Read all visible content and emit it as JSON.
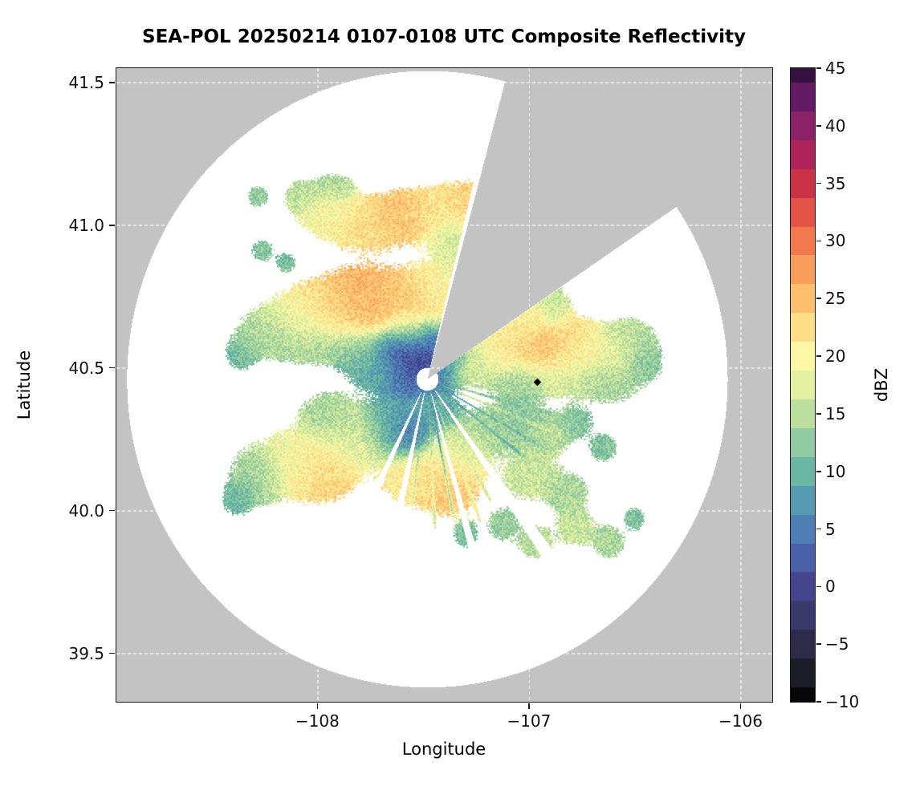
{
  "title": "SEA-POL 20250214 0107-0108 UTC Composite Reflectivity",
  "chart_data": {
    "type": "heatmap",
    "title": "SEA-POL 20250214 0107-0108 UTC Composite Reflectivity",
    "xlabel": "Longitude",
    "ylabel": "Latitude",
    "xlim": [
      -108.95,
      -105.85
    ],
    "ylim": [
      39.33,
      41.55
    ],
    "x_tick_values": [
      -108,
      -107,
      -106
    ],
    "x_tick_labels": [
      "−108",
      "−107",
      "−106"
    ],
    "y_tick_values": [
      41.5,
      41.0,
      40.5,
      40.0,
      39.5
    ],
    "y_tick_labels": [
      "41.5",
      "41.0",
      "40.5",
      "40.0",
      "39.5"
    ],
    "colorbar": {
      "label": "dBZ",
      "min": -10,
      "max": 45,
      "tick_values": [
        45,
        40,
        35,
        30,
        25,
        20,
        15,
        10,
        5,
        0,
        -5,
        -10
      ],
      "tick_labels": [
        "45",
        "40",
        "35",
        "30",
        "25",
        "20",
        "15",
        "10",
        "5",
        "0",
        "−5",
        "−10"
      ],
      "stops": [
        [
          -10,
          "#070709"
        ],
        [
          -7.5,
          "#1d1c29"
        ],
        [
          -5,
          "#2e2b49"
        ],
        [
          -2.5,
          "#3b3a6c"
        ],
        [
          0,
          "#45458e"
        ],
        [
          2.5,
          "#4a60a9"
        ],
        [
          5,
          "#4f7eb5"
        ],
        [
          7.5,
          "#579bb1"
        ],
        [
          10,
          "#68b6a3"
        ],
        [
          12.5,
          "#90caa0"
        ],
        [
          15,
          "#bddf9e"
        ],
        [
          17.5,
          "#e3f1a0"
        ],
        [
          20,
          "#fdf6a5"
        ],
        [
          22.5,
          "#fddd86"
        ],
        [
          25,
          "#fdbe6e"
        ],
        [
          27.5,
          "#f99d5c"
        ],
        [
          30,
          "#f2784e"
        ],
        [
          32.5,
          "#e35345"
        ],
        [
          35,
          "#cb3248"
        ],
        [
          37.5,
          "#ae2458"
        ],
        [
          40,
          "#8b2268"
        ],
        [
          42.5,
          "#621b64"
        ],
        [
          45,
          "#36103f"
        ]
      ]
    },
    "outside_range_color": "#c3c3c3",
    "gridline_color": "#e6e6e6",
    "radar": {
      "lon": -107.48,
      "lat": 40.46,
      "range_deg_lat": 1.08,
      "blocked_sector_az": [
        15,
        56
      ],
      "echo_clip_az": [
        13.5,
        56.2
      ]
    },
    "marker": {
      "lon": -106.96,
      "lat": 40.45,
      "shape": "diamond",
      "color": "#000000"
    },
    "echo_blobs": [
      [
        -108.07,
        41.1,
        0.05,
        0.035,
        15
      ],
      [
        -107.95,
        41.04,
        0.09,
        0.05,
        19
      ],
      [
        -107.78,
        41.0,
        0.1,
        0.055,
        22
      ],
      [
        -107.6,
        41.03,
        0.1,
        0.055,
        25
      ],
      [
        -107.42,
        41.05,
        0.1,
        0.05,
        21
      ],
      [
        -107.25,
        41.07,
        0.1,
        0.05,
        24
      ],
      [
        -107.35,
        40.96,
        0.08,
        0.04,
        16
      ],
      [
        -107.92,
        41.13,
        0.055,
        0.03,
        14
      ],
      [
        -108.28,
        41.1,
        0.03,
        0.022,
        13
      ],
      [
        -108.26,
        40.91,
        0.032,
        0.024,
        12
      ],
      [
        -108.15,
        40.87,
        0.028,
        0.02,
        11
      ],
      [
        -108.24,
        40.62,
        0.085,
        0.05,
        14
      ],
      [
        -108.08,
        40.66,
        0.11,
        0.06,
        17
      ],
      [
        -107.96,
        40.7,
        0.12,
        0.065,
        23
      ],
      [
        -107.78,
        40.74,
        0.12,
        0.07,
        26
      ],
      [
        -107.6,
        40.72,
        0.11,
        0.065,
        24
      ],
      [
        -107.44,
        40.78,
        0.09,
        0.06,
        20
      ],
      [
        -107.32,
        40.86,
        0.07,
        0.05,
        17
      ],
      [
        -108.02,
        40.58,
        0.1,
        0.04,
        13
      ],
      [
        -107.55,
        40.63,
        0.08,
        0.04,
        15
      ],
      [
        -108.36,
        40.55,
        0.045,
        0.035,
        11
      ],
      [
        -107.62,
        40.57,
        0.06,
        0.045,
        1
      ],
      [
        -107.52,
        40.52,
        0.07,
        0.05,
        -1
      ],
      [
        -107.47,
        40.6,
        0.05,
        0.035,
        2
      ],
      [
        -107.58,
        40.46,
        0.05,
        0.035,
        4
      ],
      [
        -107.7,
        40.5,
        0.08,
        0.05,
        8
      ],
      [
        -107.42,
        40.47,
        0.05,
        0.04,
        6
      ],
      [
        -107.8,
        40.55,
        0.08,
        0.05,
        12
      ],
      [
        -107.36,
        40.55,
        0.04,
        0.03,
        5
      ],
      [
        -107.28,
        40.52,
        0.08,
        0.05,
        16
      ],
      [
        -107.1,
        40.56,
        0.1,
        0.055,
        21
      ],
      [
        -106.92,
        40.56,
        0.09,
        0.05,
        26
      ],
      [
        -106.8,
        40.6,
        0.08,
        0.05,
        22
      ],
      [
        -106.68,
        40.55,
        0.1,
        0.05,
        19
      ],
      [
        -106.53,
        40.6,
        0.08,
        0.045,
        15
      ],
      [
        -106.62,
        40.45,
        0.09,
        0.045,
        14
      ],
      [
        -106.85,
        40.47,
        0.09,
        0.045,
        17
      ],
      [
        -107.05,
        40.45,
        0.08,
        0.04,
        13
      ],
      [
        -106.45,
        40.52,
        0.05,
        0.04,
        12
      ],
      [
        -107.0,
        40.68,
        0.06,
        0.04,
        20
      ],
      [
        -106.88,
        40.72,
        0.05,
        0.04,
        16
      ],
      [
        -108.28,
        40.12,
        0.08,
        0.06,
        13
      ],
      [
        -108.1,
        40.17,
        0.11,
        0.07,
        19
      ],
      [
        -107.98,
        40.13,
        0.1,
        0.06,
        24
      ],
      [
        -107.82,
        40.25,
        0.1,
        0.07,
        17
      ],
      [
        -107.95,
        40.33,
        0.08,
        0.05,
        14
      ],
      [
        -107.66,
        40.31,
        0.07,
        0.06,
        8
      ],
      [
        -107.58,
        40.26,
        0.055,
        0.045,
        4
      ],
      [
        -107.55,
        40.12,
        0.09,
        0.06,
        21
      ],
      [
        -107.38,
        40.08,
        0.09,
        0.06,
        24
      ],
      [
        -107.32,
        40.2,
        0.08,
        0.06,
        18
      ],
      [
        -107.18,
        40.28,
        0.08,
        0.05,
        14
      ],
      [
        -107.45,
        40.35,
        0.08,
        0.045,
        9
      ],
      [
        -107.05,
        40.32,
        0.07,
        0.045,
        12
      ],
      [
        -106.92,
        40.26,
        0.07,
        0.045,
        15
      ],
      [
        -106.78,
        40.31,
        0.05,
        0.035,
        12
      ],
      [
        -107.0,
        40.12,
        0.08,
        0.05,
        16
      ],
      [
        -106.82,
        40.06,
        0.06,
        0.045,
        14
      ],
      [
        -106.65,
        40.22,
        0.04,
        0.03,
        12
      ],
      [
        -108.38,
        40.04,
        0.04,
        0.035,
        10
      ],
      [
        -107.12,
        39.95,
        0.045,
        0.035,
        13
      ],
      [
        -106.97,
        39.89,
        0.05,
        0.035,
        15
      ],
      [
        -106.78,
        39.94,
        0.055,
        0.04,
        16
      ],
      [
        -106.62,
        39.89,
        0.045,
        0.035,
        14
      ],
      [
        -107.3,
        39.92,
        0.035,
        0.03,
        11
      ],
      [
        -106.5,
        39.97,
        0.03,
        0.025,
        12
      ]
    ],
    "spokes": [
      [
        96,
        99,
        0.06,
        0.42,
        15
      ],
      [
        104,
        106.5,
        0.06,
        0.5,
        12
      ],
      [
        111,
        113.5,
        0.06,
        0.55,
        17
      ],
      [
        119,
        121,
        0.06,
        0.5,
        8
      ],
      [
        127,
        129,
        0.06,
        0.45,
        6
      ],
      [
        134,
        136,
        0.08,
        0.4,
        12
      ],
      [
        151,
        153,
        0.08,
        0.5,
        15
      ],
      [
        158,
        160,
        0.08,
        0.55,
        18
      ],
      [
        168,
        170,
        0.08,
        0.5,
        3
      ],
      [
        176,
        178,
        0.08,
        0.55,
        15
      ],
      [
        186,
        188,
        0.08,
        0.45,
        10
      ]
    ],
    "gaps": [
      [
        143,
        146.5,
        0.05,
        1.2
      ],
      [
        163.5,
        166,
        0.05,
        1.2
      ],
      [
        191,
        194,
        0.05,
        1.2
      ],
      [
        204,
        207,
        0.05,
        1.2
      ],
      [
        0,
        360,
        0,
        0.04
      ]
    ]
  }
}
